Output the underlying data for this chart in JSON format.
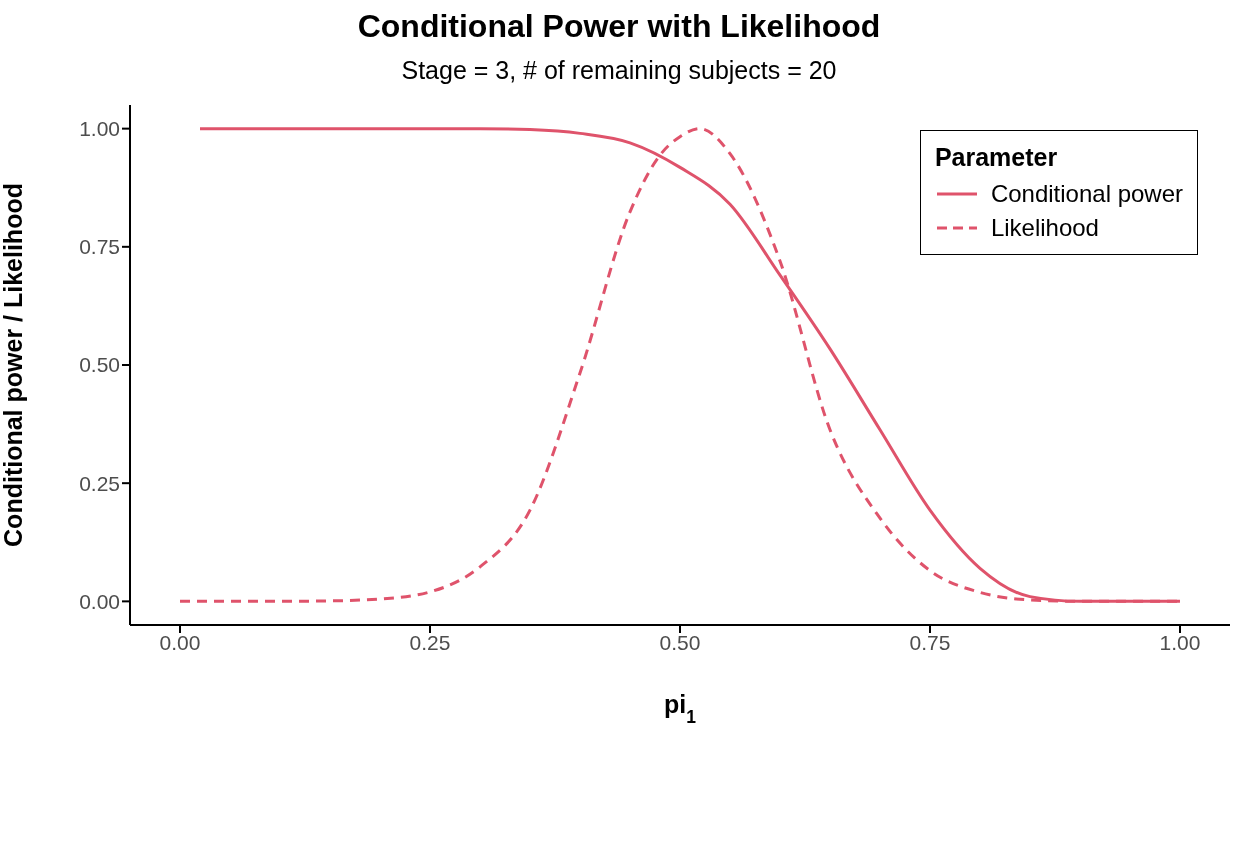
{
  "chart_data": {
    "type": "line",
    "title": "Conditional Power with Likelihood",
    "subtitle": "Stage = 3, # of remaining subjects = 20",
    "xlabel": "pi$_{1}$",
    "ylabel": "Conditional power / Likelihood",
    "legend_title": "Parameter",
    "legend": "top right",
    "grid": false,
    "xlim": [
      -0.05,
      1.05
    ],
    "ylim": [
      -0.05,
      1.05
    ],
    "xticks": [
      {
        "value": 0,
        "label": "0.00"
      },
      {
        "value": 0.25,
        "label": "0.25"
      },
      {
        "value": 0.5,
        "label": "0.50"
      },
      {
        "value": 0.75,
        "label": "0.75"
      },
      {
        "value": 1,
        "label": "1.00"
      }
    ],
    "yticks": [
      {
        "value": 0,
        "label": "0.00"
      },
      {
        "value": 0.25,
        "label": "0.25"
      },
      {
        "value": 0.5,
        "label": "0.50"
      },
      {
        "value": 0.75,
        "label": "0.75"
      },
      {
        "value": 1,
        "label": "1.00"
      }
    ],
    "series": [
      {
        "name": "Conditional power",
        "color": "#df536b",
        "line_style": "solid",
        "x": [
          0.02,
          0.1,
          0.2,
          0.3,
          0.35,
          0.4,
          0.45,
          0.5,
          0.55,
          0.6,
          0.65,
          0.7,
          0.75,
          0.8,
          0.85,
          0.9,
          0.95,
          1
        ],
        "values": [
          1,
          1,
          1,
          1,
          0.998,
          0.99,
          0.97,
          0.918,
          0.84,
          0.69,
          0.534,
          0.363,
          0.193,
          0.07,
          0.01,
          0,
          0,
          0
        ]
      },
      {
        "name": "Likelihood",
        "color": "#df536b",
        "line_style": "dashed",
        "x": [
          0,
          0.1,
          0.15,
          0.2,
          0.25,
          0.3,
          0.35,
          0.4,
          0.45,
          0.48,
          0.5,
          0.52,
          0.55,
          0.6,
          0.65,
          0.7,
          0.75,
          0.8,
          0.85,
          0.9,
          0.95,
          1
        ],
        "values": [
          0,
          0,
          0.001,
          0.005,
          0.02,
          0.073,
          0.193,
          0.483,
          0.824,
          0.944,
          0.983,
          1,
          0.947,
          0.72,
          0.363,
          0.176,
          0.065,
          0.019,
          0.003,
          0,
          0,
          0
        ]
      }
    ]
  }
}
